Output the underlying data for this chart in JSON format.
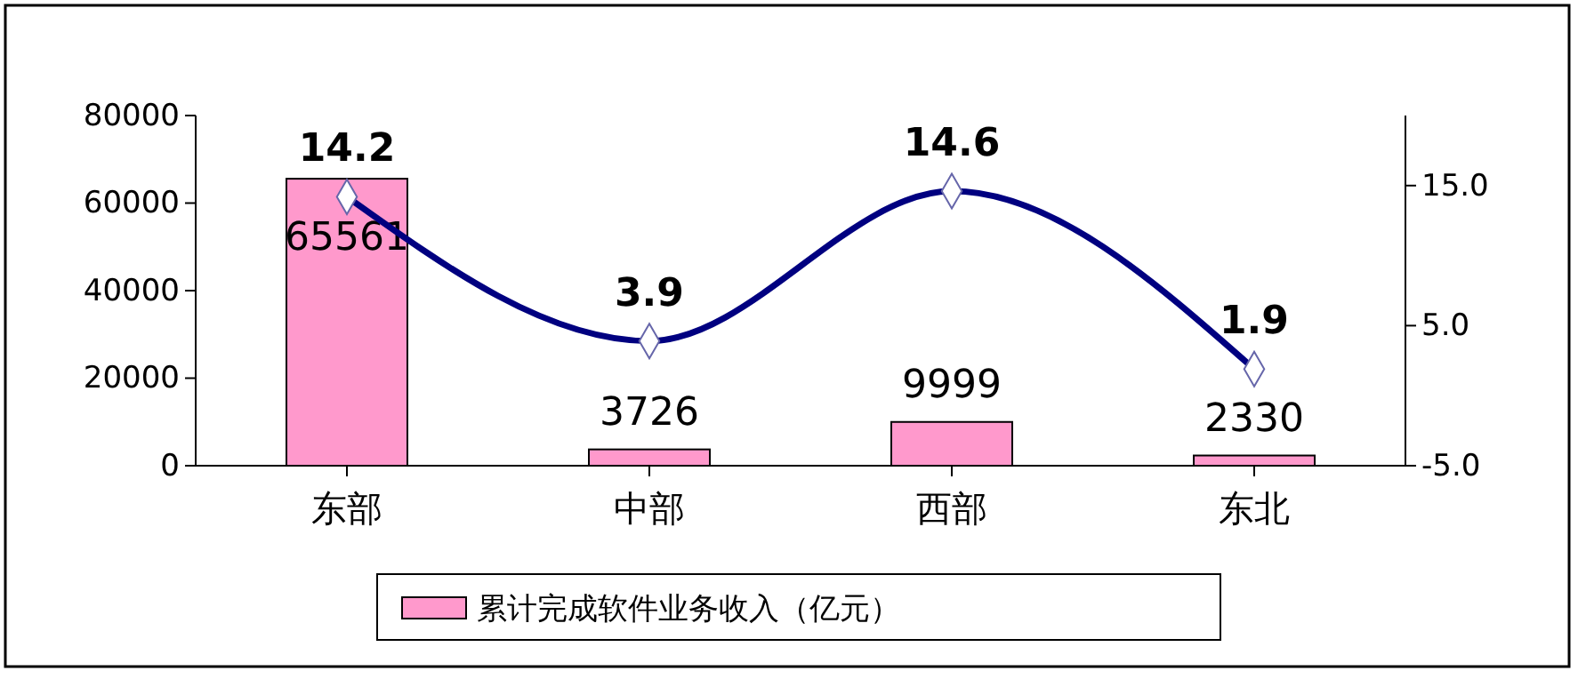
{
  "chart_data": {
    "type": "bar",
    "categories": [
      "东部",
      "中部",
      "西部",
      "东北"
    ],
    "series": [
      {
        "name": "累计完成软件业务收入（亿元）",
        "color": "#ff99cc",
        "values": [
          65561,
          3726,
          9999,
          2330
        ]
      },
      {
        "type": "line",
        "axis": "y2",
        "color": "#000080",
        "marker": "diamond",
        "line_style": "solid",
        "values": [
          14.2,
          3.9,
          14.6,
          1.9
        ]
      }
    ],
    "ylim": [
      0,
      80000
    ],
    "yticks": [
      0,
      20000,
      40000,
      60000,
      80000
    ],
    "y2lim": [
      -5,
      20
    ],
    "y2ticks": [
      {
        "value": -5,
        "label": "-5.0"
      },
      {
        "value": 5,
        "label": "5.0"
      },
      {
        "value": 15,
        "label": "15.0"
      }
    ],
    "data_labels": true,
    "legend": "bottom",
    "grid": false
  }
}
